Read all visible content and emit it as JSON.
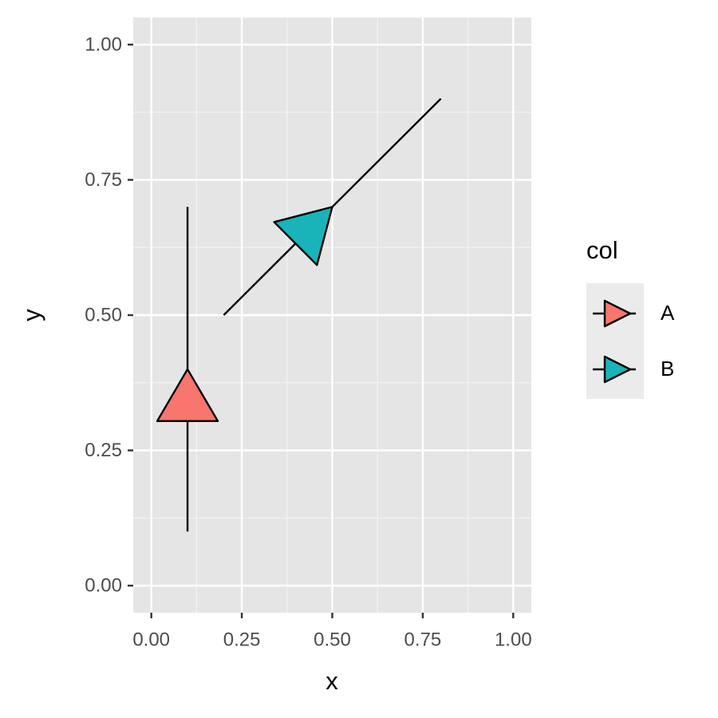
{
  "chart_data": {
    "type": "segment",
    "x_label": "x",
    "y_label": "y",
    "legend_title": "col",
    "xlim": [
      -0.05,
      1.05
    ],
    "ylim": [
      -0.05,
      1.05
    ],
    "xticks": [
      {
        "value": 0,
        "label": "0.00"
      },
      {
        "value": 0.25,
        "label": "0.25"
      },
      {
        "value": 0.5,
        "label": "0.50"
      },
      {
        "value": 0.75,
        "label": "0.75"
      },
      {
        "value": 1,
        "label": "1.00"
      }
    ],
    "yticks": [
      {
        "value": 0,
        "label": "0.00"
      },
      {
        "value": 0.25,
        "label": "0.25"
      },
      {
        "value": 0.5,
        "label": "0.50"
      },
      {
        "value": 0.75,
        "label": "0.75"
      },
      {
        "value": 1,
        "label": "1.00"
      }
    ],
    "grid": true,
    "series": [
      {
        "name": "A",
        "color": "#f8766d",
        "x": [
          0.1,
          0.1
        ],
        "y": [
          0.1,
          0.7
        ]
      },
      {
        "name": "B",
        "color": "#19b4b9",
        "x": [
          0.2,
          0.8
        ],
        "y": [
          0.5,
          0.9
        ]
      }
    ]
  }
}
